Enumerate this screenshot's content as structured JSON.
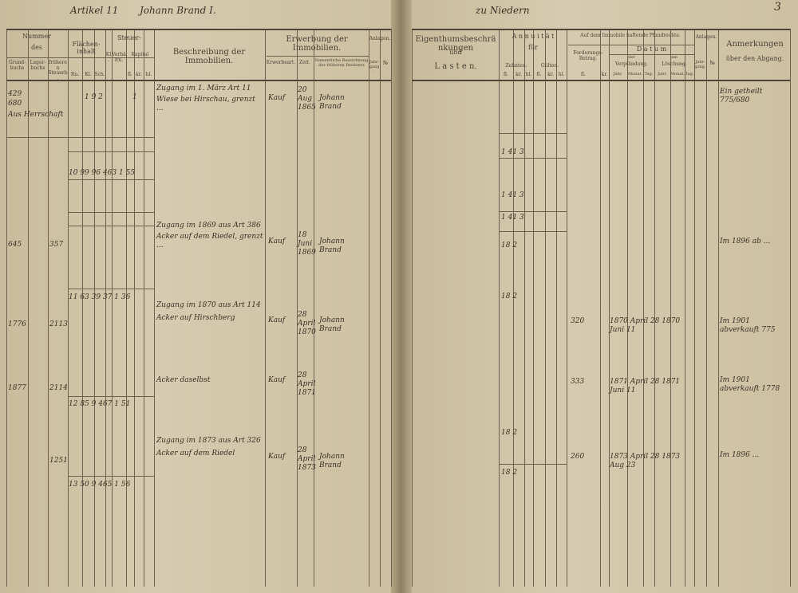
{
  "top": {
    "article": "Artikel 11",
    "owner": "Johann Brand I.",
    "place": "zu Niedern",
    "page_number": "3"
  },
  "left_header": {
    "nummer": "Nummer",
    "des": "des",
    "col_grundbuch": "Grund-buchs",
    "col_lagerbuch": "Lager-buchs",
    "col_frueheren": "früheren Steuerb.",
    "flaechen": "Flächen-inhalt",
    "flaechen_units": [
      "Ru.",
      "Kl.",
      "Sch."
    ],
    "steuer": "Steuer-",
    "steuer_sub": [
      "Kl.",
      "Verhältn.",
      "Kapital"
    ],
    "steuer_units": [
      "fl.",
      "kr.",
      "hl."
    ],
    "beschreibung": "Beschreibung der Immobilien.",
    "erwerbung": "Erwerbung der Immobilien.",
    "erwerbsart": "Erwerbsart.",
    "zeit": "Zeit.",
    "vorbesitzer": "Namentliche Bezeichnung des früheren Besitzers",
    "anlagen": "Anlagen.",
    "jahrgang": "Jahr-gang.",
    "nr": "№"
  },
  "right_header": {
    "eigenthum": "Eigenthumsbeschränkungen",
    "und": "und",
    "lasten": "L a s t e n.",
    "annuitaet": "A n n u i t ä t",
    "fuer": "für",
    "zehnten": "Zehnten.",
    "gueltten": "Gülten.",
    "annuitaet_units": [
      "fl.",
      "kr.",
      "hl.",
      "fl.",
      "kr.",
      "hl."
    ],
    "pfandrechte": "Auf dem Immobile haftende Pfandrechte.",
    "forderung": "Forderungs-Betrag.",
    "forderung_units": [
      "fl.",
      "kr."
    ],
    "datum": "D a t u m",
    "der": "der",
    "verpfaendung": "Verpfändung.",
    "loeschung": "Löschung.",
    "am": "am",
    "datum_units": [
      "Jahr.",
      "Monat.",
      "Tag.",
      "Jahr.",
      "Monat.",
      "Tag."
    ],
    "anlagen": "Anlagen.",
    "jahrgang": "Jahr-gang.",
    "nr": "№",
    "anmerkungen": "Anmerkungen",
    "abgang": "über den Abgang."
  },
  "entries_left": [
    "429",
    "680",
    "Aus Herrschaft",
    "1 9 2",
    "1",
    "Zugang im 1. März Art 11",
    "Wiese bei Hirschau, grenzt ...",
    "Kauf",
    "20 Aug 1865",
    "Johann Brand",
    "10 99 96 463 1 55",
    "645",
    "357",
    "Zugang im 1869 aus Art 386",
    "Acker auf dem Riedel, grenzt ...",
    "Kauf",
    "18 Juni 1869",
    "Johann Brand",
    "11 63 39 37 1 36",
    "1776",
    "2113",
    "Zugang im 1870 aus Art 114",
    "Acker auf Hirschberg",
    "Kauf",
    "28 April 1870",
    "Johann Brand",
    "1877",
    "2114",
    "Acker daselbst",
    "Kauf",
    "28 April 1871",
    "12 85 9 467 1 51",
    "Zugang im 1873 aus Art 326",
    "Acker auf dem Riedel",
    "Kauf",
    "28 April 1873",
    "Johann Brand",
    "1251",
    "13 50 9 465 1 56"
  ],
  "entries_right": [
    "1 41 3",
    "1 41 3",
    "1 41 3",
    "18 2",
    "18 2",
    "320",
    "1870 April 28 1870 Juni 11",
    "333",
    "1871 April 28 1871 Juni 11",
    "18 2",
    "260",
    "1873 April 28 1873 Aug 23",
    "18 2",
    "Ein getheilt 775/680",
    "Im 1896 ab ...",
    "Im 1901 abverkauft 775",
    "Im 1901 abverkauft 1778",
    "Im 1896 ..."
  ]
}
